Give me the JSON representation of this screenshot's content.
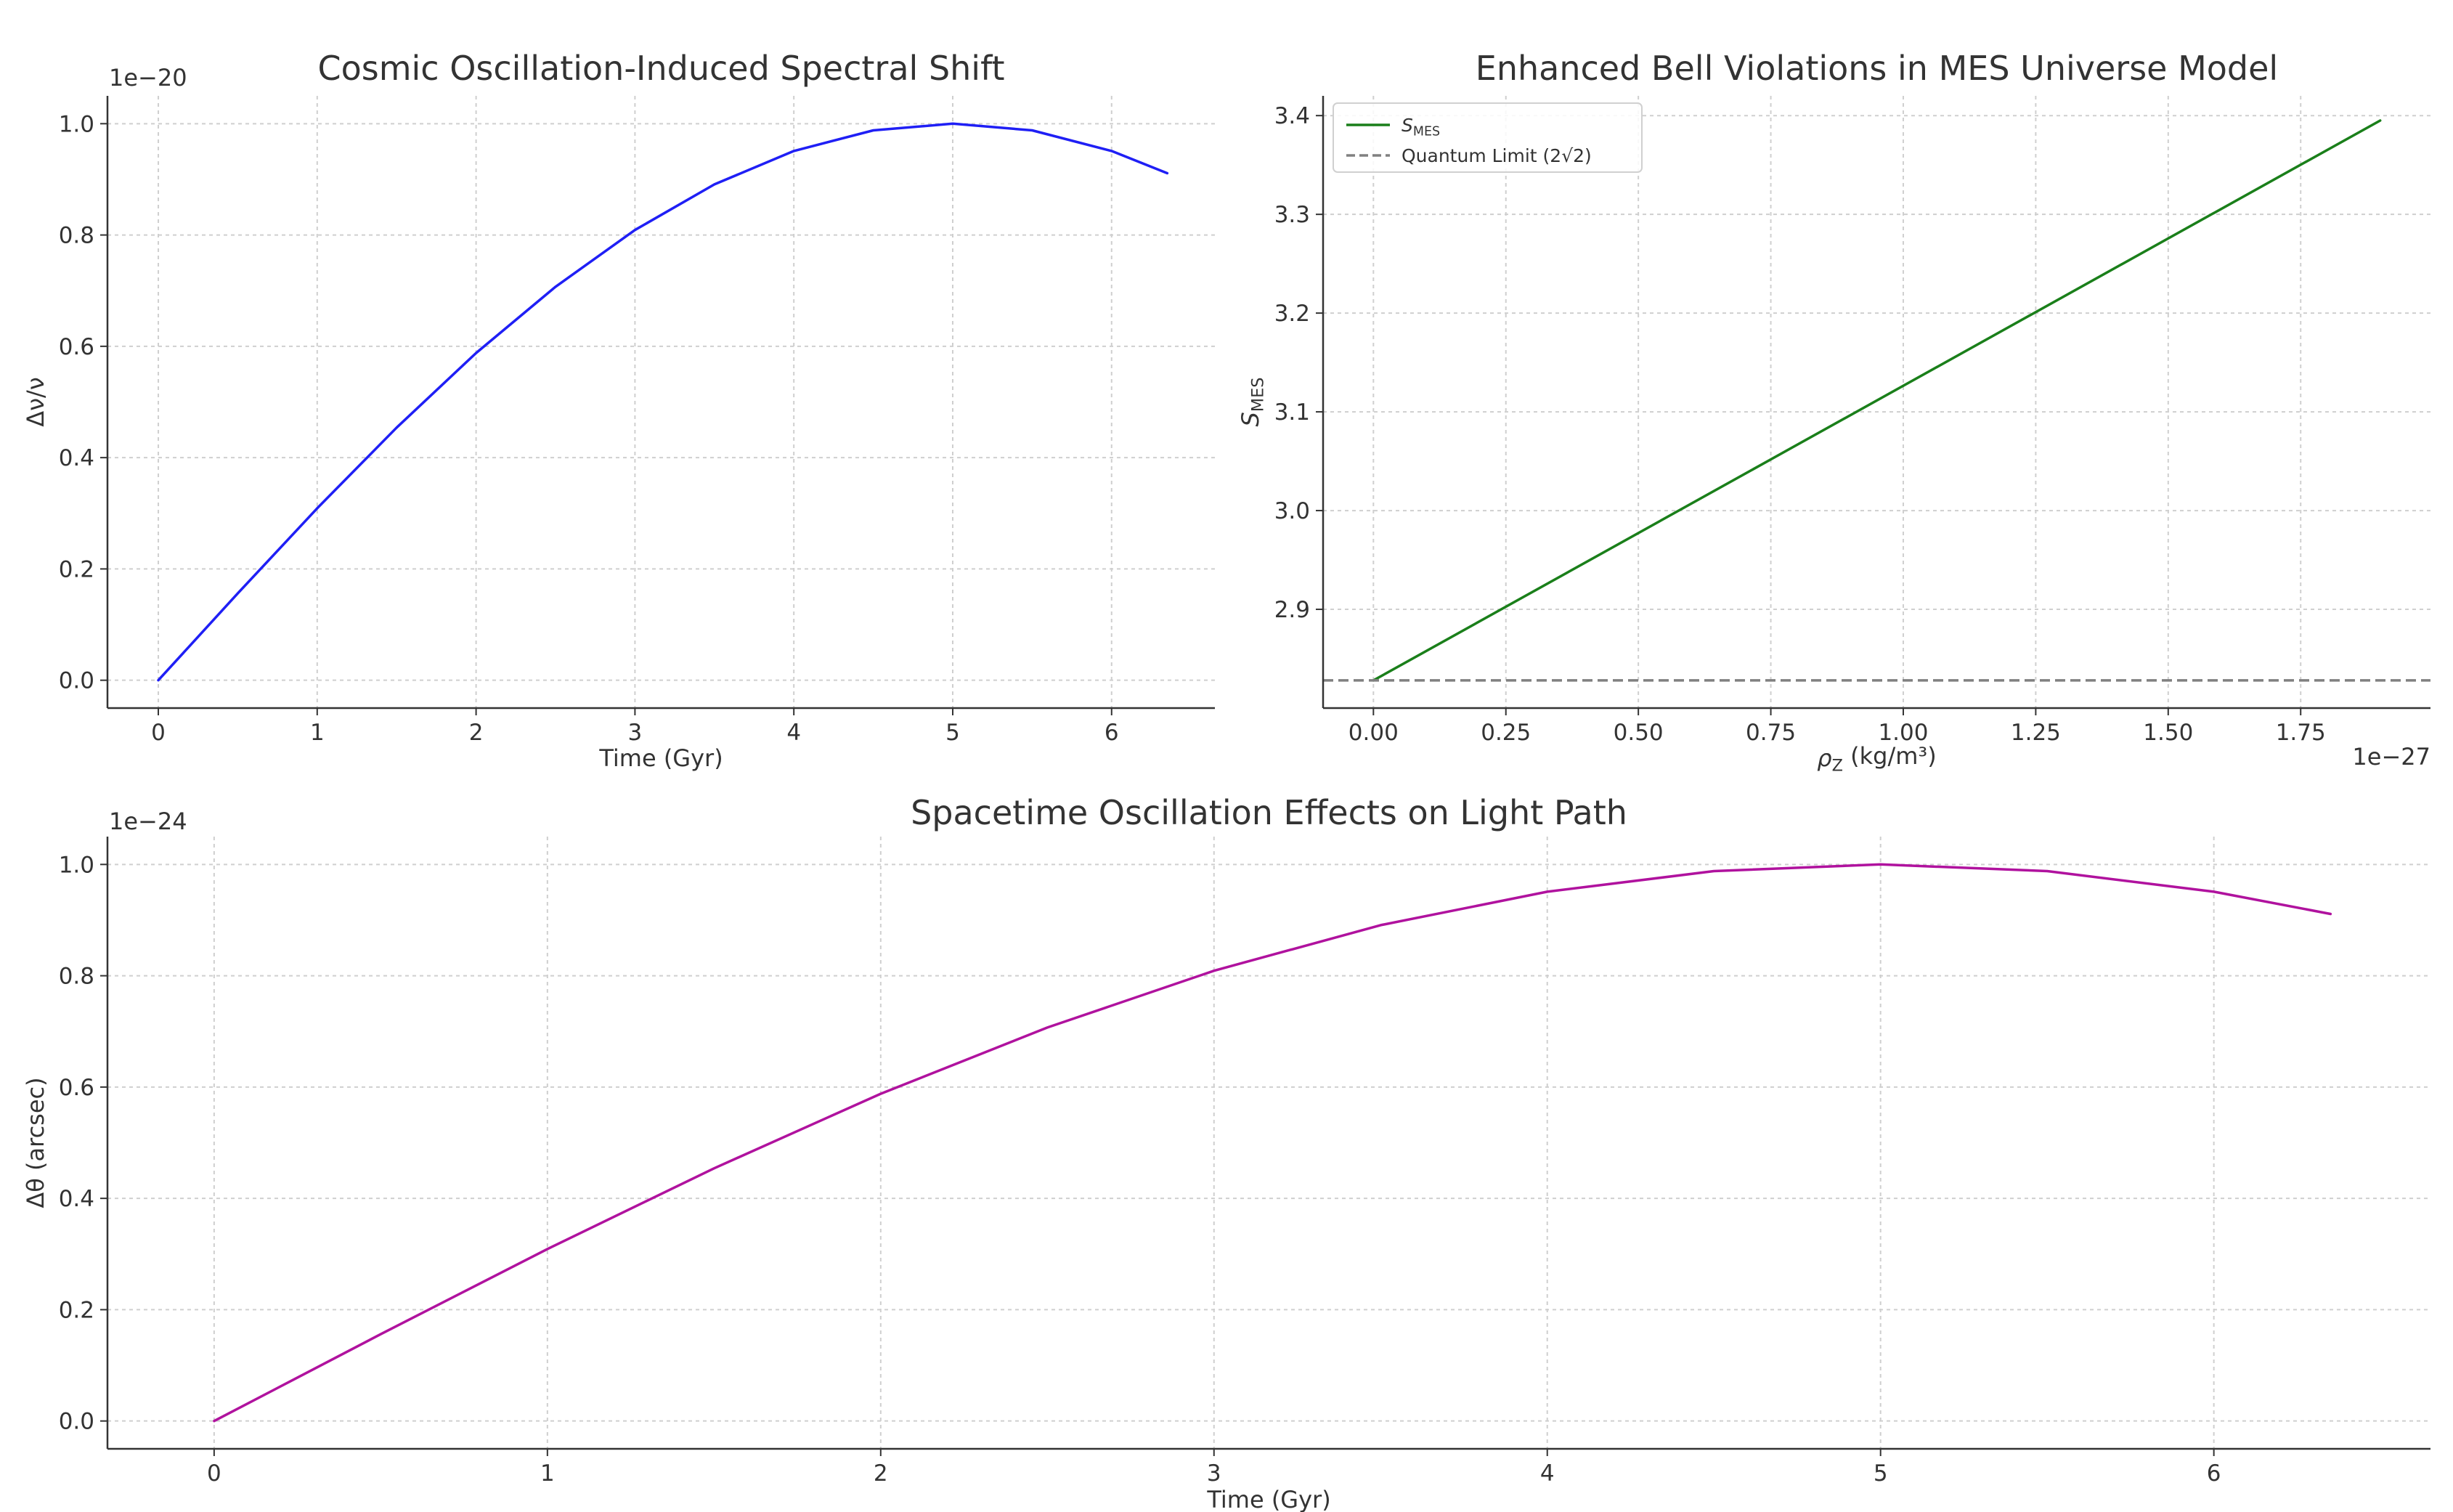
{
  "chart_data": [
    {
      "type": "line",
      "title": "Cosmic Oscillation-Induced Spectral Shift",
      "xlabel": "Time (Gyr)",
      "ylabel": "Δν/ν",
      "offset_text": "1e−20",
      "xlim": [
        -0.32,
        6.65
      ],
      "ylim": [
        -0.05,
        1.05
      ],
      "xticks": [
        0,
        1,
        2,
        3,
        4,
        5,
        6
      ],
      "xtick_labels": [
        "0",
        "1",
        "2",
        "3",
        "4",
        "5",
        "6"
      ],
      "yticks": [
        0.0,
        0.2,
        0.4,
        0.6,
        0.8,
        1.0
      ],
      "ytick_labels": [
        "0.0",
        "0.2",
        "0.4",
        "0.6",
        "0.8",
        "1.0"
      ],
      "grid": true,
      "series": [
        {
          "color": "#1f1ff5",
          "x": [
            0,
            0.5,
            1.0,
            1.5,
            2.0,
            2.5,
            3.0,
            3.5,
            4.0,
            4.5,
            5.0,
            5.5,
            6.0,
            6.35
          ],
          "y": [
            0,
            0.156,
            0.309,
            0.454,
            0.588,
            0.707,
            0.809,
            0.891,
            0.951,
            0.988,
            1.0,
            0.988,
            0.951,
            0.911
          ]
        }
      ]
    },
    {
      "type": "line",
      "title": "Enhanced Bell Violations in MES Universe Model",
      "xlabel": "ρ_Z (kg/m³)",
      "ylabel": "S_MES",
      "offset_text": "1e−27",
      "xlim": [
        -0.095,
        1.995
      ],
      "ylim": [
        2.8,
        3.42
      ],
      "xticks": [
        0.0,
        0.25,
        0.5,
        0.75,
        1.0,
        1.25,
        1.5,
        1.75
      ],
      "xtick_labels": [
        "0.00",
        "0.25",
        "0.50",
        "0.75",
        "1.00",
        "1.25",
        "1.50",
        "1.75"
      ],
      "yticks": [
        2.9,
        3.0,
        3.1,
        3.2,
        3.3,
        3.4
      ],
      "ytick_labels": [
        "2.9",
        "3.0",
        "3.1",
        "3.2",
        "3.3",
        "3.4"
      ],
      "grid": true,
      "legend": {
        "position": "upper left",
        "entries": [
          {
            "label": "S_MES",
            "color": "#1a7f1a",
            "style": "solid"
          },
          {
            "label": "Quantum Limit (2√2)",
            "color": "#808080",
            "style": "dashed"
          }
        ]
      },
      "series": [
        {
          "name": "S_MES",
          "color": "#1a7f1a",
          "x": [
            0.0,
            1.9
          ],
          "y": [
            2.828,
            3.395
          ]
        },
        {
          "name": "Quantum Limit (2√2)",
          "color": "#808080",
          "style": "dashed",
          "x": [
            -0.095,
            1.995
          ],
          "y": [
            2.828,
            2.828
          ]
        }
      ]
    },
    {
      "type": "line",
      "title": "Spacetime Oscillation Effects on Light Path",
      "xlabel": "Time (Gyr)",
      "ylabel": "Δθ (arcsec)",
      "offset_text": "1e−24",
      "xlim": [
        -0.32,
        6.65
      ],
      "ylim": [
        -0.05,
        1.05
      ],
      "xticks": [
        0,
        1,
        2,
        3,
        4,
        5,
        6
      ],
      "xtick_labels": [
        "0",
        "1",
        "2",
        "3",
        "4",
        "5",
        "6"
      ],
      "yticks": [
        0.0,
        0.2,
        0.4,
        0.6,
        0.8,
        1.0
      ],
      "ytick_labels": [
        "0.0",
        "0.2",
        "0.4",
        "0.6",
        "0.8",
        "1.0"
      ],
      "grid": true,
      "series": [
        {
          "color": "#b0129e",
          "x": [
            0,
            0.5,
            1.0,
            1.5,
            2.0,
            2.5,
            3.0,
            3.5,
            4.0,
            4.5,
            5.0,
            5.5,
            6.0,
            6.35
          ],
          "y": [
            0,
            0.156,
            0.309,
            0.454,
            0.588,
            0.707,
            0.809,
            0.891,
            0.951,
            0.988,
            1.0,
            0.988,
            0.951,
            0.911
          ]
        }
      ]
    }
  ]
}
